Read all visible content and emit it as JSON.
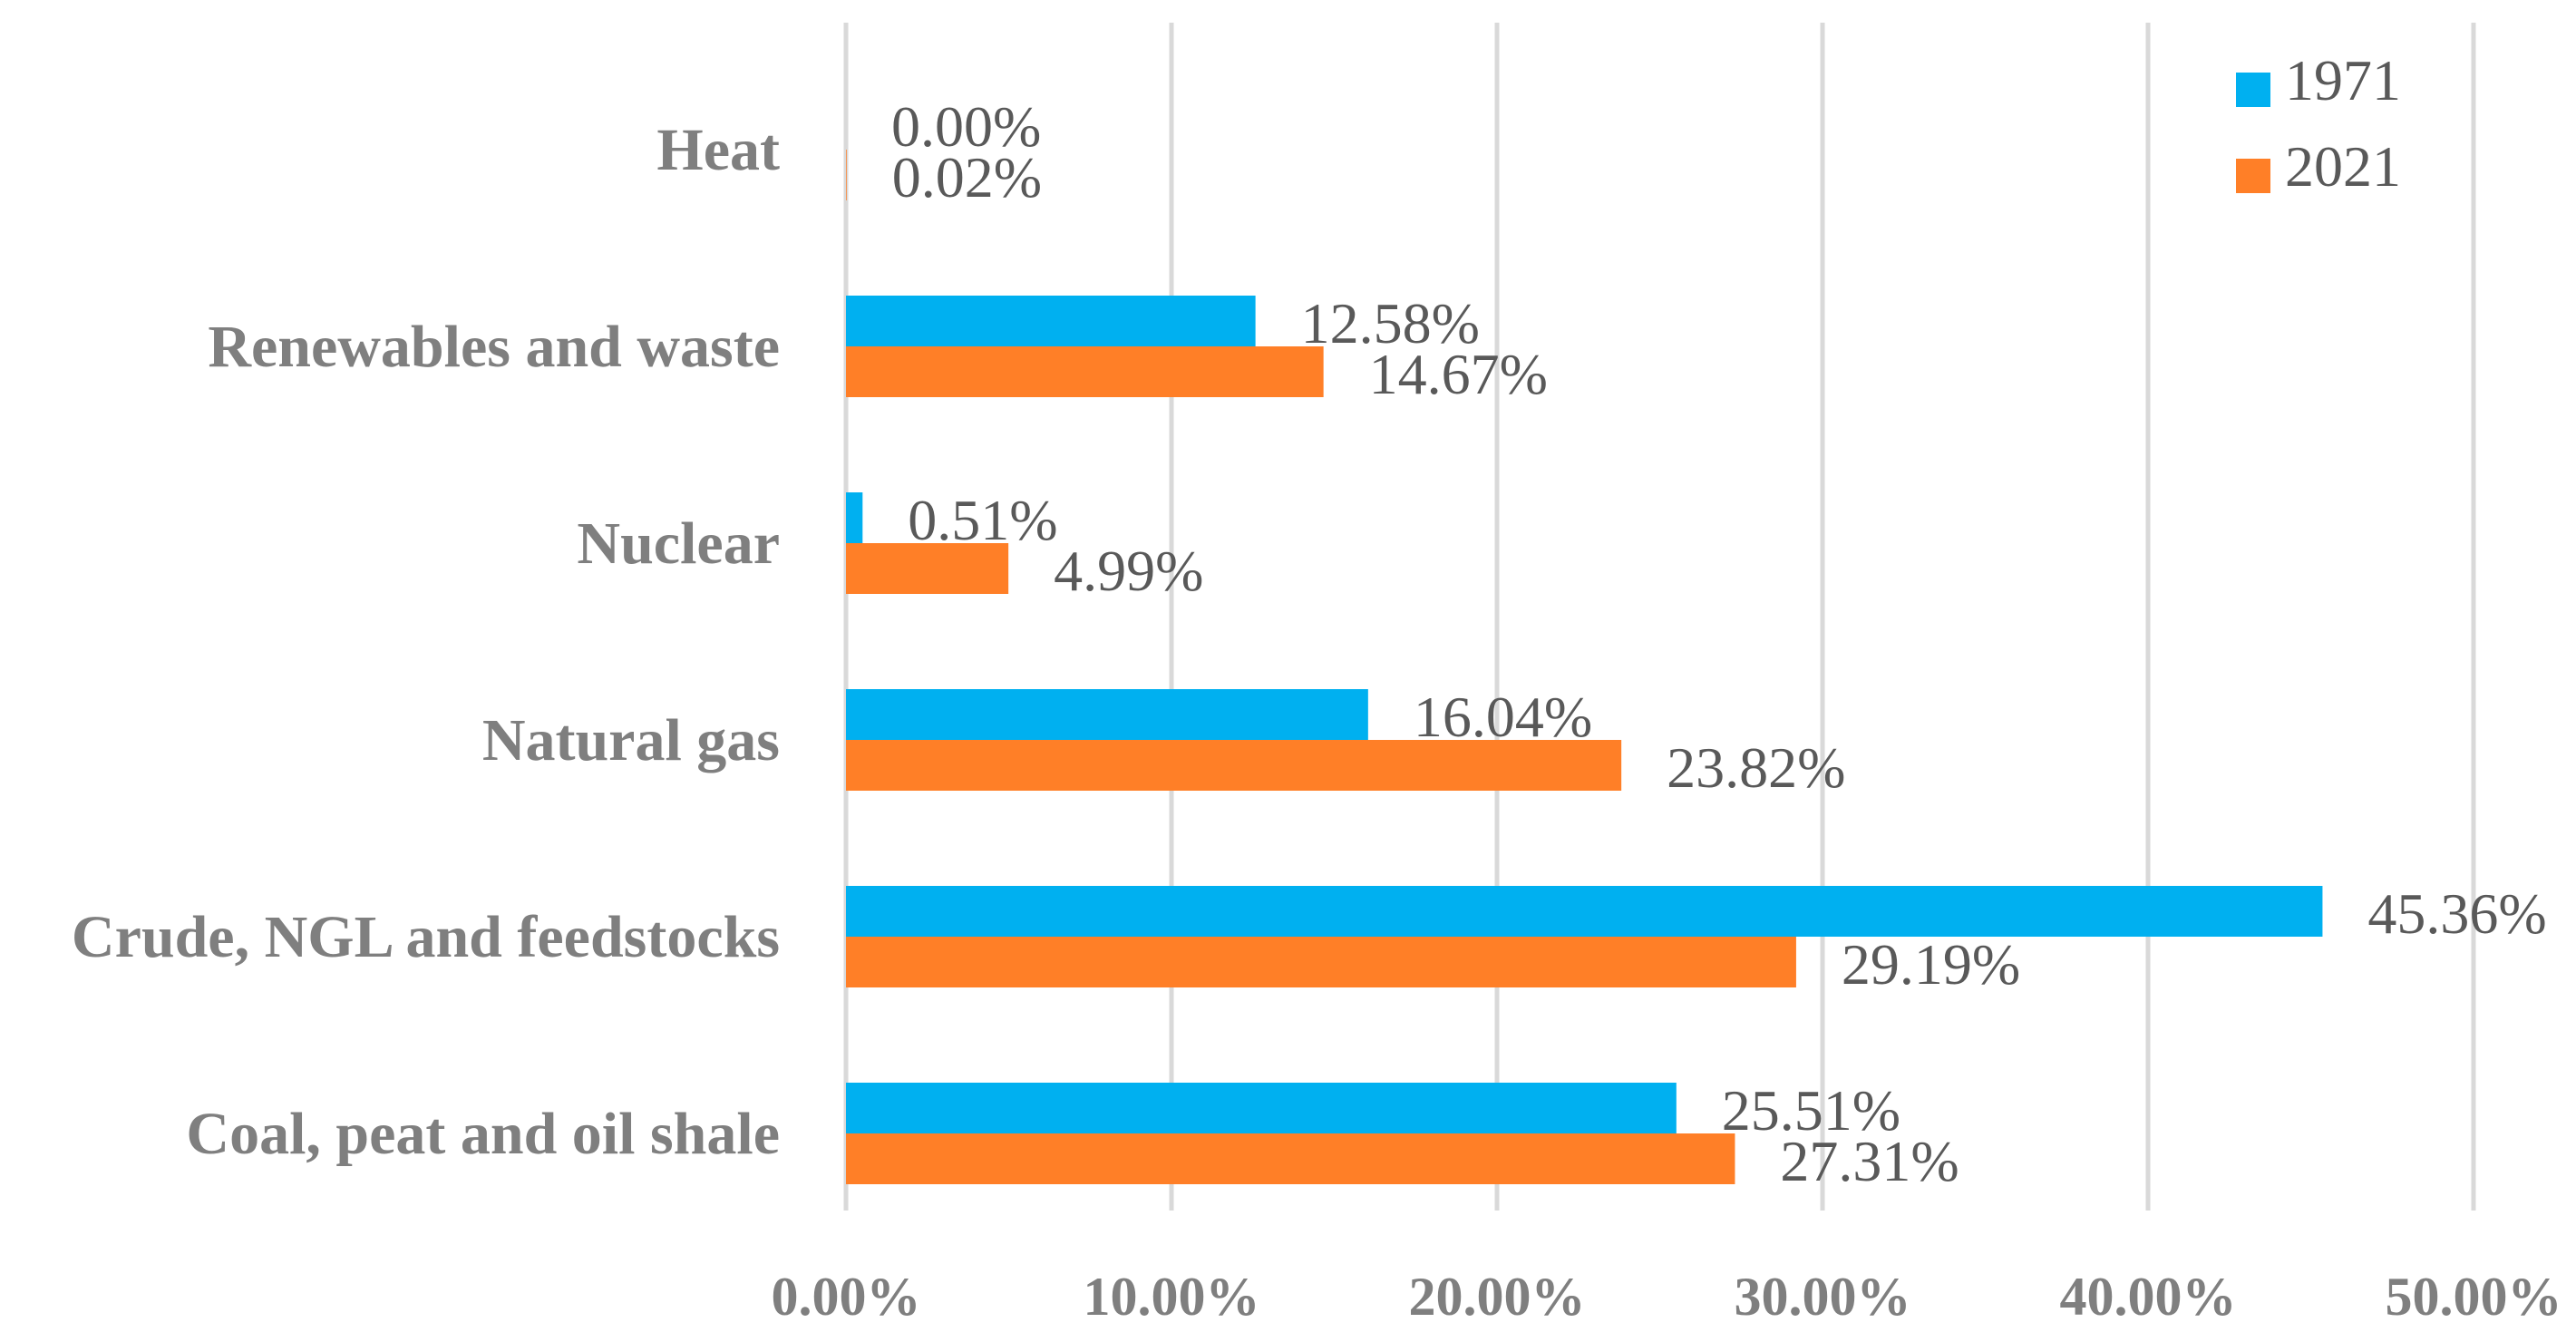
{
  "chart_data": {
    "type": "bar",
    "orientation": "horizontal",
    "categories": [
      "Coal, peat and oil shale",
      "Crude, NGL and feedstocks",
      "Natural gas",
      "Nuclear",
      "Renewables and waste",
      "Heat"
    ],
    "series": [
      {
        "name": "1971",
        "color": "#00b0f0",
        "values": [
          25.51,
          45.36,
          16.04,
          0.51,
          12.58,
          0.0
        ],
        "labels": [
          "25.51%",
          "45.36%",
          "16.04%",
          "0.51%",
          "12.58%",
          "0.00%"
        ]
      },
      {
        "name": "2021",
        "color": "#ff7f27",
        "values": [
          27.31,
          29.19,
          23.82,
          4.99,
          14.67,
          0.02
        ],
        "labels": [
          "27.31%",
          "29.19%",
          "23.82%",
          "4.99%",
          "14.67%",
          "0.02%"
        ]
      }
    ],
    "xlim": [
      0,
      50
    ],
    "xticks": [
      0,
      10,
      20,
      30,
      40,
      50
    ],
    "xtick_labels": [
      "0.00%",
      "10.00%",
      "20.00%",
      "30.00%",
      "40.00%",
      "50.00%"
    ],
    "title": "",
    "xlabel": "",
    "ylabel": "",
    "grid": true,
    "legend_position": "top-right"
  }
}
